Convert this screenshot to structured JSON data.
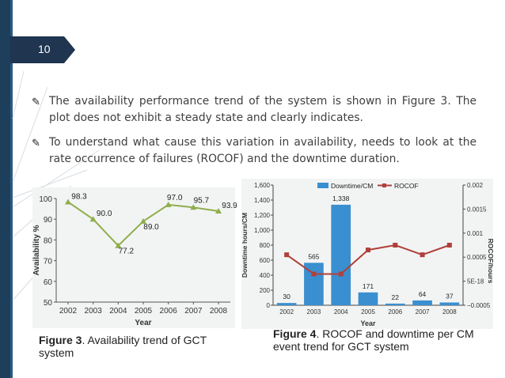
{
  "slide": {
    "number": "10",
    "bullets": [
      "The availability performance trend of the system is shown in Figure 3. The plot does not exhibit a steady state and clearly indicates.",
      "To understand what cause this variation in availability, needs to look at the rate occurrence of failures (ROCOF) and the downtime duration."
    ],
    "bullet_icon": "pencil-icon"
  },
  "figure3": {
    "caption_label": "Figure 3",
    "caption_text": ". Availability trend of GCT system"
  },
  "figure4": {
    "caption_label": "Figure 4",
    "caption_text": ". ROCOF and downtime per CM event trend for GCT system"
  },
  "chart_data": [
    {
      "type": "line",
      "title": "",
      "xlabel": "Year",
      "ylabel": "Availability %",
      "x": [
        "2002",
        "2003",
        "2004",
        "2005",
        "2006",
        "2007",
        "2008"
      ],
      "series": [
        {
          "name": "",
          "values": [
            98.3,
            90.0,
            77.2,
            89.0,
            97.0,
            95.7,
            93.9
          ]
        }
      ],
      "data_labels": [
        "98.3",
        "90.0",
        "77.2",
        "89.0",
        "97.0",
        "95.7",
        "93.9"
      ],
      "ylim": [
        50,
        100
      ],
      "yticks": [
        "50",
        "60",
        "70",
        "80",
        "90",
        "100"
      ],
      "grid": false,
      "color": "#8fae4a"
    },
    {
      "type": "bar",
      "title": "",
      "xlabel": "Year",
      "ylabel": "Downtime hours/CM",
      "y2label": "ROCOF/hours",
      "categories": [
        "2002",
        "2003",
        "2004",
        "2005",
        "2006",
        "2007",
        "2008"
      ],
      "series": [
        {
          "name": "Downtime/CM",
          "type": "bar",
          "values": [
            30,
            565,
            1338,
            171,
            22,
            64,
            37
          ],
          "color": "#3a8fd0"
        },
        {
          "name": "ROCOF",
          "type": "line",
          "axis": "right",
          "values": [
            0.00055,
            0.00015,
            0.00015,
            0.00065,
            0.00075,
            0.00055,
            0.00075
          ],
          "color": "#b0403a"
        }
      ],
      "data_labels": [
        "30",
        "565",
        "1,338",
        "171",
        "22",
        "64",
        "37"
      ],
      "ylim": [
        0,
        1600
      ],
      "yticks": [
        "0",
        "200",
        "400",
        "600",
        "800",
        "1,000",
        "1,200",
        "1,400",
        "1,600"
      ],
      "y2lim": [
        -0.0005,
        0.002
      ],
      "y2ticks": [
        "−0.0005",
        "5E-18",
        "0.0005",
        "0.001",
        "0.0015",
        "0.002"
      ],
      "legend": "top"
    }
  ]
}
